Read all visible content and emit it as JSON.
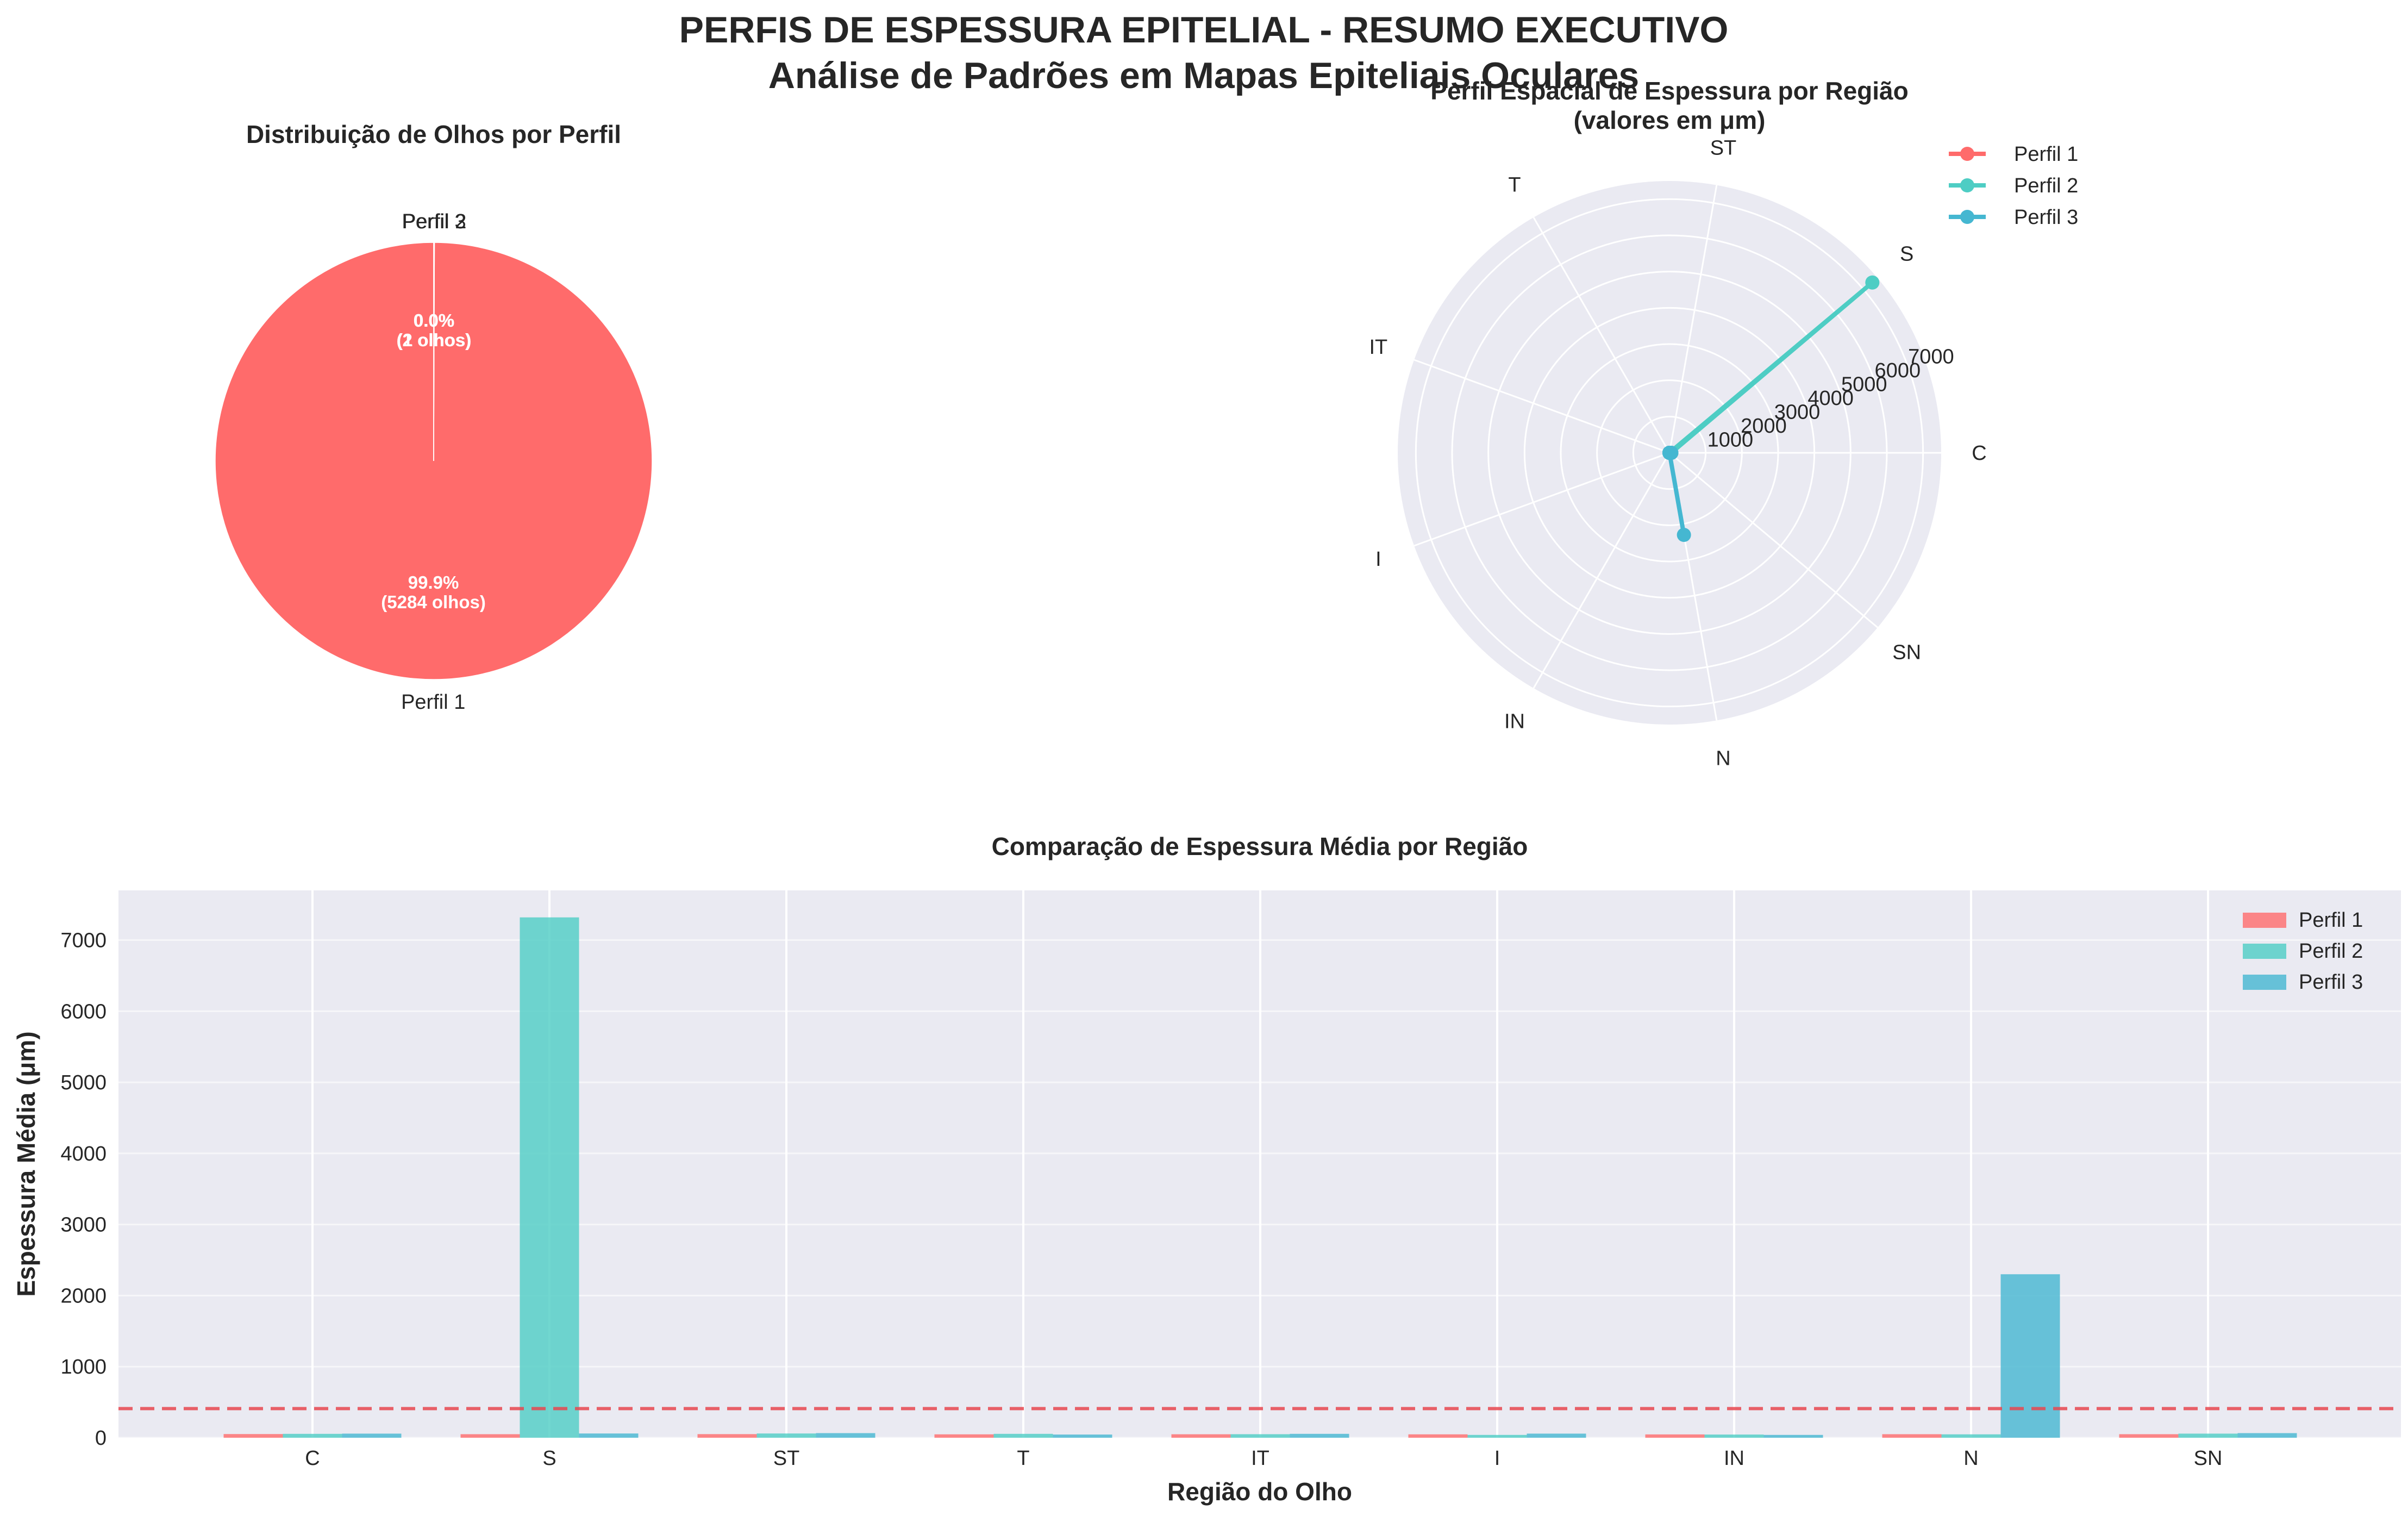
{
  "suptitle": {
    "line1": "PERFIS DE ESPESSURA EPITELIAL - RESUMO EXECUTIVO",
    "line2": "Análise de Padrões em Mapas Epiteliais Oculares"
  },
  "colors": {
    "perfil1": "#ff6b6b",
    "perfil2": "#4ecdc4",
    "perfil3": "#45b7d1",
    "axes_bg": "#eaeaf2",
    "grid": "#ffffff",
    "reference_line": "#e8474f"
  },
  "chart_data": [
    {
      "type": "pie",
      "title": "Distribuição de Olhos por Perfil",
      "labels": [
        "Perfil 1",
        "Perfil 2",
        "Perfil 3"
      ],
      "values": [
        5284,
        1,
        2
      ],
      "pct_labels": [
        "99.9%\n(5284 olhos)",
        "0.0%\n(1 olhos)",
        "0.0%\n(2 olhos)"
      ],
      "start_angle_deg": 90,
      "counterclockwise": true
    },
    {
      "type": "line",
      "subtype": "polar",
      "title": "Perfil Espacial de Espessura por Região\n(valores em μm)",
      "categories": [
        "C",
        "S",
        "ST",
        "T",
        "IT",
        "I",
        "IN",
        "N",
        "SN"
      ],
      "rmax": 7500,
      "r_ticks": [
        1000,
        2000,
        3000,
        4000,
        5000,
        6000,
        7000
      ],
      "legend_position": "upper-right-outside",
      "series": [
        {
          "name": "Perfil 1",
          "values": [
            52,
            0,
            0,
            0,
            0,
            0,
            0,
            0,
            0
          ]
        },
        {
          "name": "Perfil 2",
          "values": [
            52,
            7310,
            0,
            0,
            0,
            0,
            0,
            0,
            0
          ]
        },
        {
          "name": "Perfil 3",
          "values": [
            52,
            0,
            0,
            0,
            0,
            0,
            0,
            2300,
            0
          ]
        }
      ]
    },
    {
      "type": "bar",
      "title": "Comparação de Espessura Média por Região",
      "xlabel": "Região do Olho",
      "ylabel": "Espessura Média (μm)",
      "categories": [
        "C",
        "S",
        "ST",
        "T",
        "IT",
        "I",
        "IN",
        "N",
        "SN"
      ],
      "ylim": [
        0,
        7700
      ],
      "y_ticks": [
        0,
        1000,
        2000,
        3000,
        4000,
        5000,
        6000,
        7000
      ],
      "reference_line": 410,
      "legend_position": "upper-right",
      "grid": true,
      "series": [
        {
          "name": "Perfil 1",
          "values": [
            52,
            50,
            51,
            48,
            49,
            48,
            47,
            50,
            50
          ]
        },
        {
          "name": "Perfil 2",
          "values": [
            55,
            7320,
            60,
            55,
            50,
            40,
            45,
            48,
            58
          ]
        },
        {
          "name": "Perfil 3",
          "values": [
            58,
            60,
            65,
            45,
            55,
            58,
            40,
            2300,
            65
          ]
        }
      ]
    }
  ]
}
